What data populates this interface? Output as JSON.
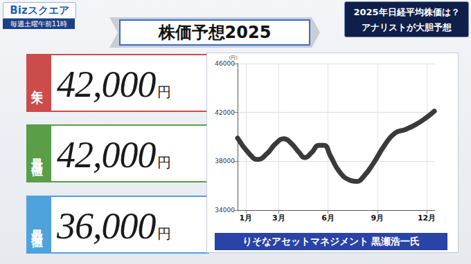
{
  "header": {
    "logo": "Bizスクエア",
    "schedule": "毎週土曜午前11時",
    "topic": [
      "2025年日経平均株価は？",
      "アナリストが大胆予想"
    ],
    "title": "株価予想2025"
  },
  "panels": [
    {
      "label": "年末",
      "value": "42,000",
      "unit": "円",
      "color": "#cc4b4b"
    },
    {
      "label": "最高値",
      "value": "42,000",
      "unit": "円",
      "color": "#5a9e47"
    },
    {
      "label": "最安値",
      "value": "36,000",
      "unit": "円",
      "color": "#4fa3dc"
    }
  ],
  "caption": "りそなアセットマネジメント 黒瀬浩一氏",
  "chart_data": {
    "type": "line",
    "ylabel": "(円)",
    "color": "#3a3a3a",
    "grid": true,
    "x": [
      0.5,
      1.22,
      1.72,
      2.27,
      2.82,
      3.32,
      3.74,
      4.25,
      4.58,
      5.0,
      5.43,
      5.76,
      6.14,
      6.69,
      7.32,
      7.74,
      8.16,
      8.79,
      9.43,
      10.06,
      10.69,
      11.32,
      11.95,
      12.46
    ],
    "values": [
      39900,
      38600,
      38150,
      38600,
      39450,
      39850,
      39500,
      38700,
      38300,
      38700,
      39300,
      39300,
      38450,
      37150,
      36450,
      36350,
      36750,
      37900,
      39300,
      40300,
      40600,
      41000,
      41550,
      42100
    ],
    "xlim": [
      0.5,
      12.5
    ],
    "xticks": [
      {
        "value": 1,
        "label": "1月"
      },
      {
        "value": 3,
        "label": "3月"
      },
      {
        "value": 6,
        "label": "6月"
      },
      {
        "value": 9,
        "label": "9月"
      },
      {
        "value": 12,
        "label": "12月"
      }
    ],
    "ylim": [
      34000,
      46000
    ],
    "yticks": [
      34000,
      38000,
      42000,
      46000
    ]
  }
}
